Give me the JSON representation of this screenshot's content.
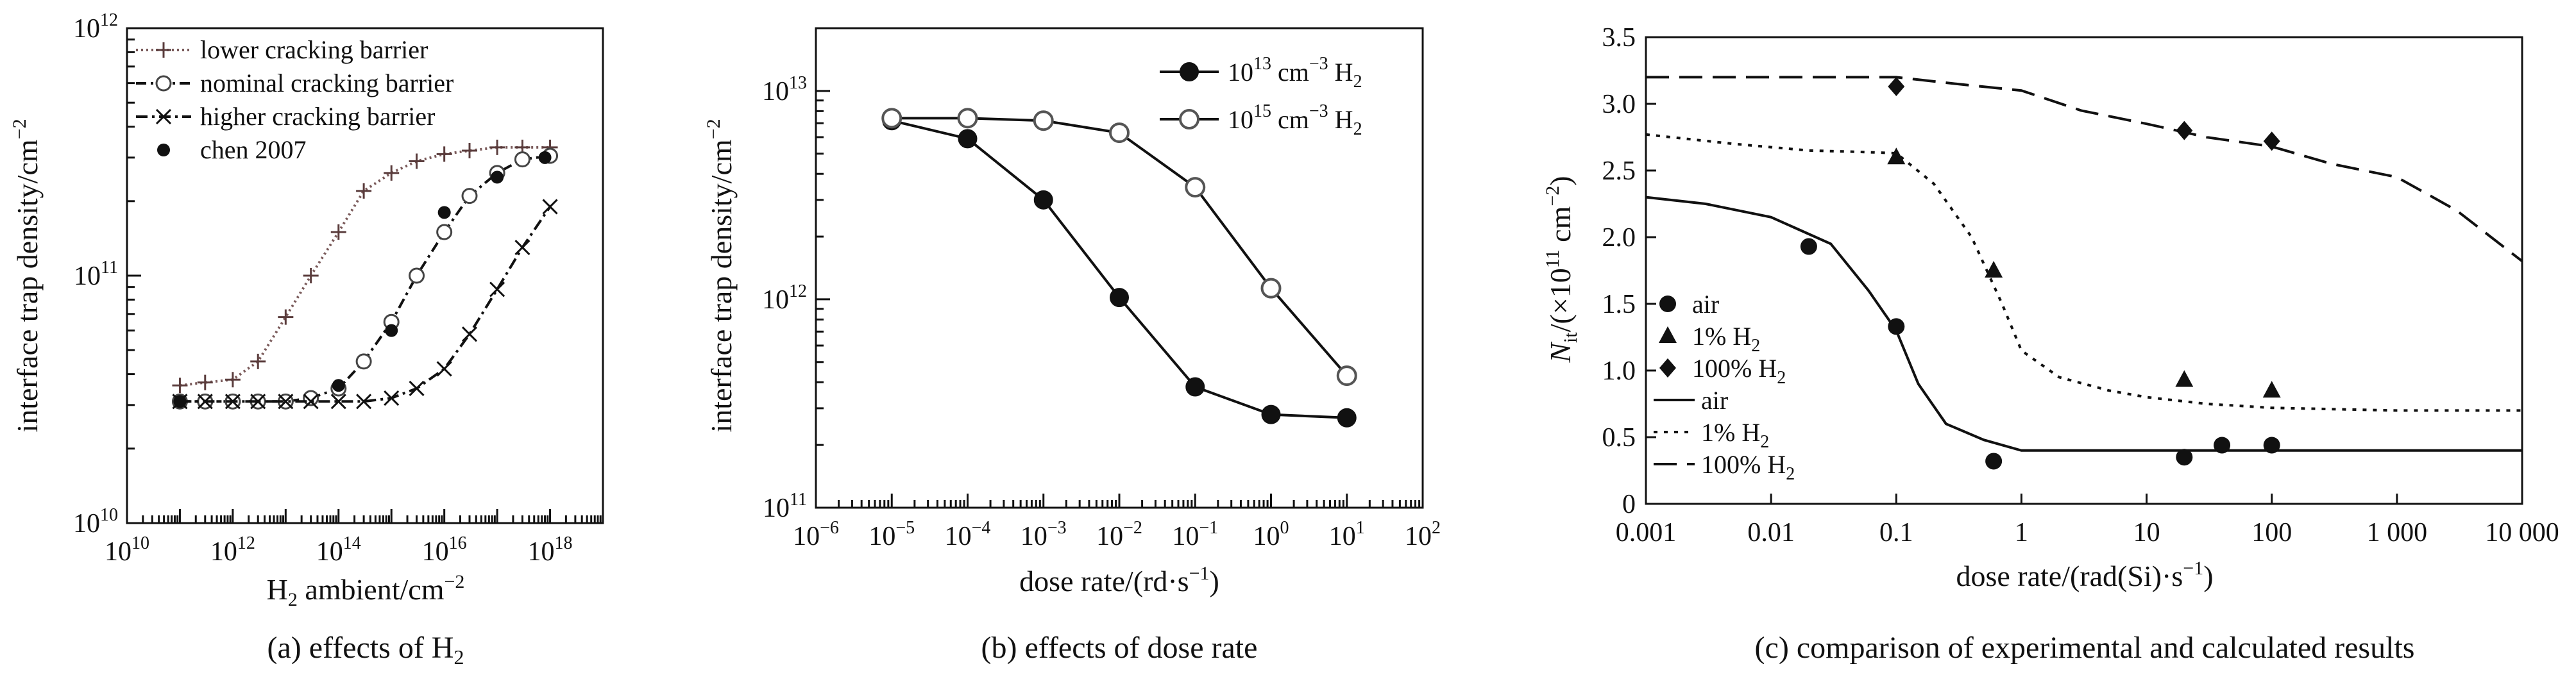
{
  "chart_data": [
    {
      "type": "line",
      "caption_text": "(a) effects of H",
      "caption_sub": "2",
      "xlabel_text": "H",
      "xlabel_sub": "2",
      "xlabel_rest": " ambient/cm",
      "xlabel_sup": "−2",
      "ylabel_text": "interface trap density/cm",
      "ylabel_sup": "−2",
      "xscale": "log",
      "yscale": "log",
      "xlim": [
        10000000000.0,
        1e+19
      ],
      "ylim": [
        10000000000.0,
        1000000000000.0
      ],
      "xticks": [
        {
          "base": "10",
          "exp": "10"
        },
        {
          "base": "10",
          "exp": "12"
        },
        {
          "base": "10",
          "exp": "14"
        },
        {
          "base": "10",
          "exp": "16"
        },
        {
          "base": "10",
          "exp": "18"
        }
      ],
      "yticks": [
        {
          "base": "10",
          "exp": "10"
        },
        {
          "base": "10",
          "exp": "11"
        },
        {
          "base": "10",
          "exp": "12"
        }
      ],
      "legend_position": "top-left",
      "series": [
        {
          "name": "lower cracking barrier",
          "style": "dotted-plus",
          "color": "#6a4a4a",
          "x": [
            100000000000.0,
            300000000000.0,
            1000000000000.0,
            3000000000000.0,
            10000000000000.0,
            30000000000000.0,
            100000000000000.0,
            300000000000000.0,
            1000000000000000.0,
            3000000000000000.0,
            1e+16,
            3e+16,
            1e+17,
            3e+17,
            1e+18
          ],
          "y": [
            36000000000.0,
            37000000000.0,
            38000000000.0,
            45000000000.0,
            68000000000.0,
            100000000000.0,
            150000000000.0,
            220000000000.0,
            260000000000.0,
            290000000000.0,
            310000000000.0,
            320000000000.0,
            330000000000.0,
            330000000000.0,
            330000000000.0
          ]
        },
        {
          "name": "nominal cracking barrier",
          "style": "dashdot-circle",
          "color": "#111111",
          "x": [
            100000000000.0,
            300000000000.0,
            1000000000000.0,
            3000000000000.0,
            10000000000000.0,
            30000000000000.0,
            100000000000000.0,
            300000000000000.0,
            1000000000000000.0,
            3000000000000000.0,
            1e+16,
            3e+16,
            1e+17,
            3e+17,
            1e+18
          ],
          "y": [
            31000000000.0,
            31000000000.0,
            31000000000.0,
            31000000000.0,
            31000000000.0,
            32000000000.0,
            35000000000.0,
            45000000000.0,
            65000000000.0,
            100000000000.0,
            150000000000.0,
            210000000000.0,
            260000000000.0,
            295000000000.0,
            305000000000.0
          ]
        },
        {
          "name": "higher cracking barrier",
          "style": "dashdot-x",
          "color": "#111111",
          "x": [
            100000000000.0,
            300000000000.0,
            1000000000000.0,
            3000000000000.0,
            10000000000000.0,
            30000000000000.0,
            100000000000000.0,
            300000000000000.0,
            1000000000000000.0,
            3000000000000000.0,
            1e+16,
            3e+16,
            1e+17,
            3e+17,
            1e+18
          ],
          "y": [
            31000000000.0,
            31000000000.0,
            31000000000.0,
            31000000000.0,
            31000000000.0,
            31000000000.0,
            31000000000.0,
            31000000000.0,
            32000000000.0,
            35000000000.0,
            42000000000.0,
            58000000000.0,
            88000000000.0,
            130000000000.0,
            190000000000.0
          ]
        },
        {
          "name": "chen 2007",
          "style": "dot",
          "color": "#111111",
          "x": [
            100000000000.0,
            100000000000000.0,
            1000000000000000.0,
            1e+16,
            1e+17,
            8e+17
          ],
          "y": [
            31000000000.0,
            36000000000.0,
            60000000000.0,
            180000000000.0,
            250000000000.0,
            300000000000.0
          ]
        }
      ]
    },
    {
      "type": "line",
      "caption_text": "(b) effects of dose rate",
      "xlabel_text": "dose rate/(rd·s",
      "xlabel_sup": "−1",
      "xlabel_rest": ")",
      "ylabel_text": "interface trap density/cm",
      "ylabel_sup": "−2",
      "xscale": "log",
      "yscale": "log",
      "xlim": [
        1e-06,
        100
      ],
      "ylim": [
        100000000000.0,
        20000000000000.0
      ],
      "xticks": [
        {
          "base": "10",
          "exp": "−6"
        },
        {
          "base": "10",
          "exp": "−5"
        },
        {
          "base": "10",
          "exp": "−4"
        },
        {
          "base": "10",
          "exp": "−3"
        },
        {
          "base": "10",
          "exp": "−2"
        },
        {
          "base": "10",
          "exp": "−1"
        },
        {
          "base": "10",
          "exp": "0"
        },
        {
          "base": "10",
          "exp": "1"
        },
        {
          "base": "10",
          "exp": "2"
        }
      ],
      "yticks": [
        {
          "base": "10",
          "exp": "11"
        },
        {
          "base": "10",
          "exp": "12"
        },
        {
          "base": "10",
          "exp": "13"
        }
      ],
      "legend_position": "top-right",
      "series": [
        {
          "name_base": "10",
          "name_exp": "13",
          "name_unit": " cm",
          "name_unit_sup": "−3",
          "name_gas": " H",
          "name_gas_sub": "2",
          "marker": "filled",
          "x": [
            1e-05,
            0.0001,
            0.001,
            0.01,
            0.1,
            1,
            10
          ],
          "y": [
            7200000000000.0,
            5900000000000.0,
            3000000000000.0,
            1020000000000.0,
            380000000000.0,
            280000000000.0,
            270000000000.0
          ]
        },
        {
          "name_base": "10",
          "name_exp": "15",
          "name_unit": " cm",
          "name_unit_sup": "−3",
          "name_gas": " H",
          "name_gas_sub": "2",
          "marker": "open",
          "x": [
            1e-05,
            0.0001,
            0.001,
            0.01,
            0.1,
            1,
            10
          ],
          "y": [
            7400000000000.0,
            7400000000000.0,
            7200000000000.0,
            6300000000000.0,
            3450000000000.0,
            1130000000000.0,
            430000000000.0
          ]
        }
      ]
    },
    {
      "type": "line",
      "caption_text": "(c) comparison of experimental and calculated results",
      "xlabel_text": "dose rate/(rad(Si)·s",
      "xlabel_sup": "−1",
      "xlabel_rest": ")",
      "ylabel_N": "N",
      "ylabel_Nsub": "it",
      "ylabel_mid": "/(×10",
      "ylabel_exp": "11",
      "ylabel_unit": " cm",
      "ylabel_unit_sup": "−2",
      "ylabel_end": ")",
      "xscale": "log",
      "yscale": "linear",
      "xlim": [
        0.001,
        10000
      ],
      "ylim": [
        0,
        3.5
      ],
      "xtick_labels": [
        "0.001",
        "0.01",
        "0.1",
        "1",
        "10",
        "100",
        "1 000",
        "10 000"
      ],
      "xtick_values": [
        0.001,
        0.01,
        0.1,
        1,
        10,
        100,
        1000,
        10000
      ],
      "ytick_labels": [
        "0",
        "0.5",
        "1.0",
        "1.5",
        "2.0",
        "2.5",
        "3.0",
        "3.5"
      ],
      "ytick_values": [
        0,
        0.5,
        1.0,
        1.5,
        2.0,
        2.5,
        3.0,
        3.5
      ],
      "legend_position": "left",
      "legend": [
        {
          "label": "air",
          "marker": "circle"
        },
        {
          "label": "1% H",
          "sub": "2",
          "marker": "triangle"
        },
        {
          "label": "100% H",
          "sub": "2",
          "marker": "diamond"
        },
        {
          "label": "air",
          "line": "solid"
        },
        {
          "label": "1% H",
          "sub": "2",
          "line": "dotted"
        },
        {
          "label": "100% H",
          "sub": "2",
          "line": "dashed"
        }
      ],
      "measured": [
        {
          "name": "air",
          "marker": "circle",
          "x": [
            0.02,
            0.1,
            0.6,
            20,
            40,
            100
          ],
          "y": [
            1.93,
            1.33,
            0.32,
            0.35,
            0.44,
            0.44
          ]
        },
        {
          "name": "1% H2",
          "marker": "triangle",
          "x": [
            0.1,
            0.6,
            20,
            100
          ],
          "y": [
            2.6,
            1.75,
            0.93,
            0.85
          ]
        },
        {
          "name": "100% H2",
          "marker": "diamond",
          "x": [
            0.1,
            20,
            100
          ],
          "y": [
            3.13,
            2.8,
            2.72
          ]
        }
      ],
      "calculated": [
        {
          "name": "air",
          "line": "solid",
          "x": [
            0.001,
            0.003,
            0.01,
            0.03,
            0.06,
            0.1,
            0.15,
            0.25,
            0.5,
            1,
            10,
            100,
            1000,
            10000
          ],
          "y": [
            2.3,
            2.25,
            2.15,
            1.95,
            1.6,
            1.3,
            0.9,
            0.6,
            0.48,
            0.4,
            0.4,
            0.4,
            0.4,
            0.4
          ]
        },
        {
          "name": "1% H2",
          "line": "dotted",
          "x": [
            0.001,
            0.005,
            0.02,
            0.05,
            0.1,
            0.2,
            0.4,
            0.7,
            1,
            2,
            5,
            10,
            30,
            100,
            1000,
            10000
          ],
          "y": [
            2.77,
            2.7,
            2.65,
            2.64,
            2.63,
            2.4,
            2.0,
            1.5,
            1.15,
            0.95,
            0.85,
            0.8,
            0.75,
            0.72,
            0.7,
            0.7
          ]
        },
        {
          "name": "100% H2",
          "line": "dashed",
          "x": [
            0.001,
            0.01,
            0.1,
            0.3,
            1,
            3,
            10,
            30,
            100,
            300,
            1000,
            3000,
            10000
          ],
          "y": [
            3.2,
            3.2,
            3.2,
            3.15,
            3.1,
            2.95,
            2.85,
            2.75,
            2.68,
            2.55,
            2.45,
            2.2,
            1.82
          ]
        }
      ]
    }
  ]
}
